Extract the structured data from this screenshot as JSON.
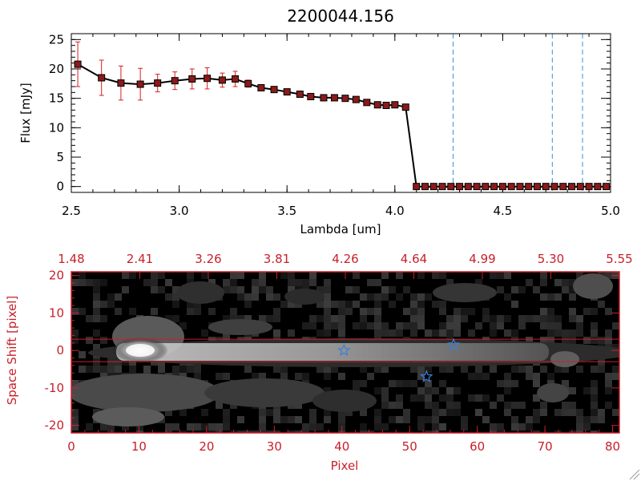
{
  "chart_data": [
    {
      "type": "line",
      "title": "2200044.156",
      "xlabel": "Lambda [um]",
      "ylabel": "Flux [mJy]",
      "xlim": [
        2.5,
        5.0
      ],
      "ylim": [
        -1,
        26
      ],
      "xticks": [
        "2.5",
        "3.0",
        "3.5",
        "4.0",
        "4.5",
        "5.0"
      ],
      "xtick_values": [
        2.5,
        3.0,
        3.5,
        4.0,
        4.5,
        5.0
      ],
      "yticks": [
        "0",
        "5",
        "10",
        "15",
        "20",
        "25"
      ],
      "ytick_values": [
        0,
        5,
        10,
        15,
        20,
        25
      ],
      "series": [
        {
          "x": [
            2.53,
            2.64,
            2.73,
            2.82,
            2.9,
            2.98,
            3.06,
            3.13,
            3.2,
            3.26,
            3.32,
            3.38,
            3.44,
            3.5,
            3.56,
            3.61,
            3.67,
            3.72,
            3.77,
            3.82,
            3.87,
            3.92,
            3.96,
            4.0,
            4.05,
            4.1,
            4.14,
            4.18,
            4.22,
            4.26,
            4.3,
            4.34,
            4.38,
            4.42,
            4.46,
            4.5,
            4.54,
            4.58,
            4.62,
            4.66,
            4.7,
            4.74,
            4.78,
            4.82,
            4.86,
            4.9,
            4.94,
            4.98
          ],
          "y": [
            20.8,
            18.5,
            17.6,
            17.4,
            17.6,
            18.0,
            18.3,
            18.4,
            18.1,
            18.3,
            17.5,
            16.8,
            16.5,
            16.1,
            15.7,
            15.3,
            15.1,
            15.1,
            15.0,
            14.8,
            14.3,
            13.9,
            13.8,
            13.9,
            13.5,
            0,
            0,
            0,
            0,
            0,
            0,
            0,
            0,
            0,
            0,
            0,
            0,
            0,
            0,
            0,
            0,
            0,
            0,
            0,
            0,
            0,
            0,
            0
          ],
          "yerr": [
            3.8,
            3.0,
            2.9,
            2.7,
            1.5,
            1.5,
            1.7,
            1.8,
            1.2,
            1.3,
            0.6,
            0.3,
            0.2,
            0.2,
            0.2,
            0.2,
            0.2,
            0.2,
            0.2,
            0.2,
            0.2,
            0.2,
            0.2,
            0.2,
            0.2,
            0,
            0,
            0,
            0,
            0,
            0,
            0,
            0,
            0,
            0,
            0,
            0,
            0,
            0,
            0,
            0,
            0,
            0,
            0,
            0,
            0,
            0,
            0
          ]
        }
      ],
      "vlines": [
        4.27,
        4.73,
        4.87
      ],
      "colors": {
        "line": "#000000",
        "marker": "#8b1a1a",
        "error": "#d42020",
        "vline": "#3a8fd8"
      }
    },
    {
      "type": "heatmap",
      "xlabel": "Pixel",
      "ylabel": "Space Shift [pixel]",
      "xlim": [
        0,
        81
      ],
      "ylim": [
        -22,
        21
      ],
      "xticks": [
        "0",
        "10",
        "20",
        "30",
        "40",
        "50",
        "60",
        "70",
        "80"
      ],
      "xtick_values": [
        0,
        10,
        20,
        30,
        40,
        50,
        60,
        70,
        80
      ],
      "yticks": [
        "-20",
        "-10",
        "0",
        "10",
        "20"
      ],
      "ytick_values": [
        -20,
        -10,
        0,
        10,
        20
      ],
      "top_ticks": [
        "1.48",
        "2.41",
        "3.26",
        "3.81",
        "4.26",
        "4.64",
        "4.99",
        "5.30",
        "5.55"
      ],
      "hlines": [
        3,
        -3
      ],
      "stars": [
        {
          "x": 40.3,
          "y": 0
        },
        {
          "x": 52.5,
          "y": -7
        },
        {
          "x": 56.5,
          "y": 1.5
        }
      ],
      "colors": {
        "axes": "#c8202a",
        "hline": "#c8202a",
        "star": "#3a7fd8"
      }
    }
  ]
}
